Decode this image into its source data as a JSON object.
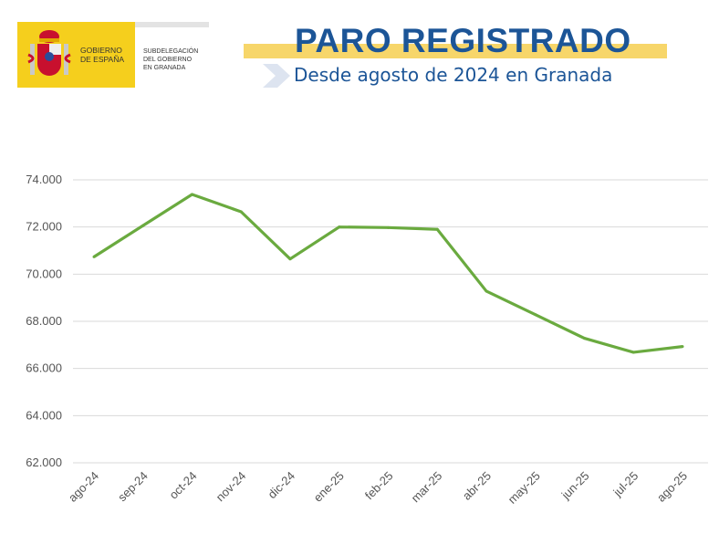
{
  "header": {
    "logo_text_1": "GOBIERNO\nDE ESPAÑA",
    "logo_text_2": "SUBDELEGACIÓN\nDEL GOBIERNO\nEN GRANADA",
    "title": "PARO REGISTRADO",
    "subtitle": "Desde agosto de 2024 en Granada"
  },
  "colors": {
    "line": "#6aaa3f",
    "title": "#1c5597",
    "band": "#f7d66a",
    "grid": "#d9d9d9"
  },
  "chart_data": {
    "type": "line",
    "categories": [
      "ago-24",
      "sep-24",
      "oct-24",
      "nov-24",
      "dic-24",
      "ene-25",
      "feb-25",
      "mar-25",
      "abr-25",
      "may-25",
      "jun-25",
      "jul-25",
      "ago-25"
    ],
    "values": [
      70735,
      72060,
      73380,
      72645,
      70645,
      72000,
      71975,
      71900,
      69280,
      68285,
      67280,
      66685,
      66930
    ],
    "ylim": [
      62000,
      74000
    ],
    "yticks": [
      62000,
      64000,
      66000,
      68000,
      70000,
      72000,
      74000
    ],
    "ytick_labels": [
      "62.000",
      "64.000",
      "66.000",
      "68.000",
      "70.000",
      "72.000",
      "74.000"
    ],
    "grid": true,
    "legend": "none"
  }
}
